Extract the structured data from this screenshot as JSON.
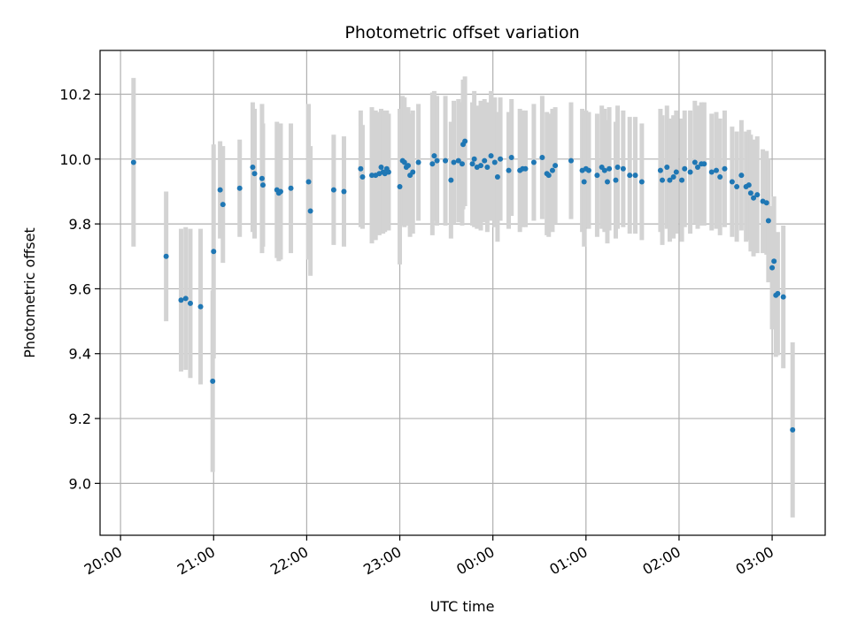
{
  "chart_data": {
    "type": "scatter",
    "title": "Photometric offset variation",
    "xlabel": "UTC time",
    "ylabel": "Photometric offset",
    "x_unit": "hours since 20:00 UTC",
    "xlim": [
      -0.22,
      7.57
    ],
    "ylim": [
      8.84,
      10.335
    ],
    "x_ticks": [
      0,
      1,
      2,
      3,
      4,
      5,
      6,
      7
    ],
    "x_tick_labels": [
      "20:00",
      "21:00",
      "22:00",
      "23:00",
      "00:00",
      "01:00",
      "02:00",
      "03:00"
    ],
    "y_ticks": [
      9.0,
      9.2,
      9.4,
      9.6,
      9.8,
      10.0,
      10.2
    ],
    "y_tick_labels": [
      "9.0",
      "9.2",
      "9.4",
      "9.6",
      "9.8",
      "10.0",
      "10.2"
    ],
    "grid": true,
    "colors": {
      "point": "#1f77b4",
      "errorbar": "#d3d3d3",
      "grid": "#b0b0b0",
      "axes": "#000000"
    },
    "series": [
      {
        "name": "",
        "points": [
          [
            0.14,
            9.99,
            0.26
          ],
          [
            0.49,
            9.7,
            0.2
          ],
          [
            0.65,
            9.565,
            0.22
          ],
          [
            0.7,
            9.57,
            0.22
          ],
          [
            0.75,
            9.555,
            0.23
          ],
          [
            0.86,
            9.545,
            0.24
          ],
          [
            0.99,
            9.315,
            0.28
          ],
          [
            1.0,
            9.715,
            0.33
          ],
          [
            1.07,
            9.905,
            0.15
          ],
          [
            1.1,
            9.86,
            0.18
          ],
          [
            1.28,
            9.91,
            0.15
          ],
          [
            1.42,
            9.975,
            0.2
          ],
          [
            1.44,
            9.955,
            0.2
          ],
          [
            1.52,
            9.94,
            0.23
          ],
          [
            1.53,
            9.92,
            0.19
          ],
          [
            1.68,
            9.905,
            0.21
          ],
          [
            1.7,
            9.895,
            0.21
          ],
          [
            1.72,
            9.9,
            0.21
          ],
          [
            1.83,
            9.91,
            0.2
          ],
          [
            2.02,
            9.93,
            0.24
          ],
          [
            2.04,
            9.84,
            0.2
          ],
          [
            2.29,
            9.905,
            0.17
          ],
          [
            2.4,
            9.9,
            0.17
          ],
          [
            2.58,
            9.97,
            0.18
          ],
          [
            2.6,
            9.945,
            0.16
          ],
          [
            2.7,
            9.95,
            0.21
          ],
          [
            2.74,
            9.95,
            0.2
          ],
          [
            2.78,
            9.955,
            0.19
          ],
          [
            2.8,
            9.975,
            0.18
          ],
          [
            2.82,
            9.96,
            0.19
          ],
          [
            2.84,
            9.955,
            0.18
          ],
          [
            2.86,
            9.97,
            0.18
          ],
          [
            2.88,
            9.96,
            0.18
          ],
          [
            3.0,
            9.915,
            0.24
          ],
          [
            3.03,
            9.995,
            0.2
          ],
          [
            3.05,
            9.99,
            0.2
          ],
          [
            3.07,
            9.975,
            0.18
          ],
          [
            3.09,
            9.98,
            0.18
          ],
          [
            3.11,
            9.95,
            0.19
          ],
          [
            3.14,
            9.96,
            0.19
          ],
          [
            3.2,
            9.99,
            0.18
          ],
          [
            3.35,
            9.985,
            0.22
          ],
          [
            3.37,
            10.01,
            0.2
          ],
          [
            3.4,
            9.995,
            0.2
          ],
          [
            3.49,
            9.995,
            0.2
          ],
          [
            3.55,
            9.935,
            0.18
          ],
          [
            3.58,
            9.99,
            0.19
          ],
          [
            3.63,
            9.995,
            0.19
          ],
          [
            3.67,
            9.985,
            0.19
          ],
          [
            3.68,
            10.045,
            0.2
          ],
          [
            3.7,
            10.055,
            0.2
          ],
          [
            3.78,
            9.985,
            0.19
          ],
          [
            3.8,
            10.0,
            0.21
          ],
          [
            3.83,
            9.975,
            0.19
          ],
          [
            3.87,
            9.98,
            0.2
          ],
          [
            3.91,
            9.995,
            0.19
          ],
          [
            3.94,
            9.975,
            0.2
          ],
          [
            3.98,
            10.01,
            0.2
          ],
          [
            4.02,
            9.99,
            0.2
          ],
          [
            4.05,
            9.945,
            0.2
          ],
          [
            4.08,
            10.0,
            0.19
          ],
          [
            4.17,
            9.965,
            0.18
          ],
          [
            4.2,
            10.005,
            0.18
          ],
          [
            4.29,
            9.965,
            0.19
          ],
          [
            4.32,
            9.97,
            0.18
          ],
          [
            4.35,
            9.97,
            0.18
          ],
          [
            4.44,
            9.99,
            0.18
          ],
          [
            4.53,
            10.005,
            0.19
          ],
          [
            4.58,
            9.955,
            0.19
          ],
          [
            4.6,
            9.95,
            0.19
          ],
          [
            4.64,
            9.965,
            0.19
          ],
          [
            4.67,
            9.98,
            0.18
          ],
          [
            4.84,
            9.995,
            0.18
          ],
          [
            4.96,
            9.965,
            0.19
          ],
          [
            4.98,
            9.93,
            0.2
          ],
          [
            5.0,
            9.97,
            0.18
          ],
          [
            5.03,
            9.965,
            0.18
          ],
          [
            5.12,
            9.95,
            0.19
          ],
          [
            5.17,
            9.975,
            0.19
          ],
          [
            5.2,
            9.965,
            0.19
          ],
          [
            5.23,
            9.93,
            0.19
          ],
          [
            5.25,
            9.97,
            0.19
          ],
          [
            5.32,
            9.935,
            0.18
          ],
          [
            5.34,
            9.975,
            0.19
          ],
          [
            5.4,
            9.97,
            0.18
          ],
          [
            5.47,
            9.95,
            0.18
          ],
          [
            5.53,
            9.95,
            0.18
          ],
          [
            5.6,
            9.93,
            0.18
          ],
          [
            5.8,
            9.965,
            0.19
          ],
          [
            5.82,
            9.935,
            0.2
          ],
          [
            5.87,
            9.975,
            0.19
          ],
          [
            5.9,
            9.935,
            0.19
          ],
          [
            5.94,
            9.945,
            0.19
          ],
          [
            5.97,
            9.96,
            0.19
          ],
          [
            6.03,
            9.935,
            0.19
          ],
          [
            6.06,
            9.97,
            0.18
          ],
          [
            6.12,
            9.96,
            0.19
          ],
          [
            6.17,
            9.99,
            0.19
          ],
          [
            6.2,
            9.975,
            0.19
          ],
          [
            6.24,
            9.985,
            0.19
          ],
          [
            6.27,
            9.985,
            0.19
          ],
          [
            6.35,
            9.96,
            0.18
          ],
          [
            6.4,
            9.965,
            0.18
          ],
          [
            6.44,
            9.945,
            0.18
          ],
          [
            6.49,
            9.97,
            0.18
          ],
          [
            6.57,
            9.93,
            0.17
          ],
          [
            6.62,
            9.915,
            0.17
          ],
          [
            6.67,
            9.95,
            0.17
          ],
          [
            6.72,
            9.915,
            0.17
          ],
          [
            6.75,
            9.92,
            0.17
          ],
          [
            6.77,
            9.895,
            0.18
          ],
          [
            6.8,
            9.88,
            0.18
          ],
          [
            6.84,
            9.89,
            0.18
          ],
          [
            6.9,
            9.87,
            0.16
          ],
          [
            6.94,
            9.865,
            0.16
          ],
          [
            6.96,
            9.81,
            0.19
          ],
          [
            7.0,
            9.665,
            0.19
          ],
          [
            7.02,
            9.685,
            0.2
          ],
          [
            7.04,
            9.58,
            0.19
          ],
          [
            7.06,
            9.585,
            0.19
          ],
          [
            7.12,
            9.575,
            0.22
          ],
          [
            7.22,
            9.165,
            0.27
          ]
        ]
      }
    ]
  }
}
